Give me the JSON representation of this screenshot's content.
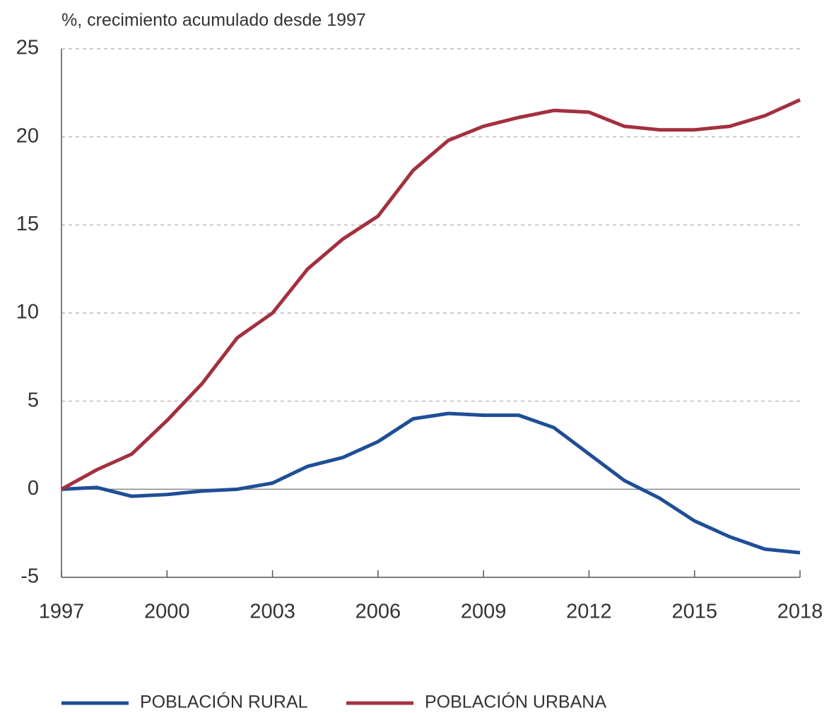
{
  "chart_data": {
    "type": "line",
    "title": "%, crecimiento acumulado desde 1997",
    "x": [
      1997,
      1998,
      1999,
      2000,
      2001,
      2002,
      2003,
      2004,
      2005,
      2006,
      2007,
      2008,
      2009,
      2010,
      2011,
      2012,
      2013,
      2014,
      2015,
      2016,
      2017,
      2018
    ],
    "xlim": [
      1997,
      2018
    ],
    "xticks": [
      1997,
      2000,
      2003,
      2006,
      2009,
      2012,
      2015,
      2018
    ],
    "ylim": [
      -5,
      25
    ],
    "yticks": [
      -5,
      0,
      5,
      10,
      15,
      20,
      25
    ],
    "grid": true,
    "legend": "bottom",
    "series": [
      {
        "name": "POBLACIÓN RURAL",
        "color": "#1f4e96",
        "values": [
          0,
          0.1,
          -0.4,
          -0.3,
          -0.1,
          0.0,
          0.35,
          1.3,
          1.8,
          2.7,
          4.0,
          4.3,
          4.2,
          4.2,
          3.5,
          2.0,
          0.5,
          -0.5,
          -1.8,
          -2.7,
          -3.4,
          -3.6
        ]
      },
      {
        "name": "POBLACIÓN URBANA",
        "color": "#a3303f",
        "values": [
          0,
          1.1,
          2.0,
          3.9,
          6.0,
          8.6,
          10.0,
          12.5,
          14.2,
          15.5,
          18.1,
          19.8,
          20.6,
          21.1,
          21.5,
          21.4,
          20.6,
          20.4,
          20.4,
          20.6,
          21.2,
          22.1
        ]
      }
    ]
  }
}
